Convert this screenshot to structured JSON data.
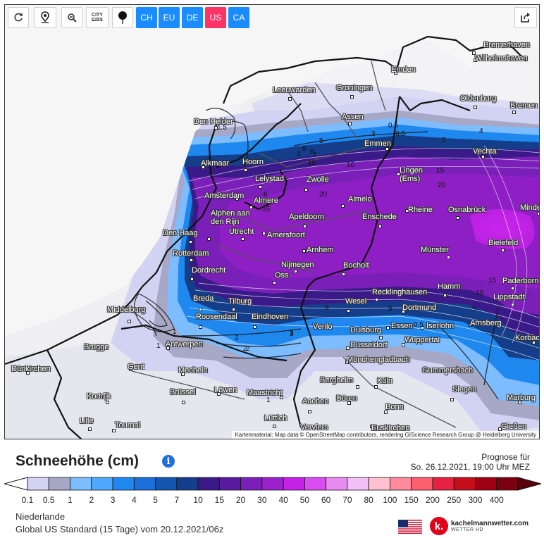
{
  "toolbar": {
    "buttons": [
      {
        "name": "refresh-button",
        "icon": "refresh-icon"
      },
      {
        "name": "location-button",
        "icon": "location-pin-icon"
      },
      {
        "name": "zoom-out-button",
        "icon": "zoom-out-icon"
      },
      {
        "name": "city-labels-button",
        "icon": "city-strike-icon",
        "label": "CITY"
      },
      {
        "name": "station-marker-button",
        "icon": "balloon-pin-icon"
      }
    ],
    "regions": [
      {
        "label": "CH",
        "color": "#1a8cff",
        "active": false
      },
      {
        "label": "EU",
        "color": "#1a8cff",
        "active": false
      },
      {
        "label": "DE",
        "color": "#1a8cff",
        "active": false
      },
      {
        "label": "US",
        "color": "#ff3366",
        "active": true
      },
      {
        "label": "CA",
        "color": "#1a8cff",
        "active": false
      }
    ],
    "share_icon": "share-icon"
  },
  "map": {
    "attribution": "Kartenmaterial: Map data © OpenStreetMap contributors, rendering GIScience Research Group @ Heidelberg University",
    "cities": [
      {
        "name": "Bremerhaven"
      },
      {
        "name": "Wilhelmshaven"
      },
      {
        "name": "Emden"
      },
      {
        "name": "Leeuwarden"
      },
      {
        "name": "Groningen"
      },
      {
        "name": "Oldenburg"
      },
      {
        "name": "Bremen"
      },
      {
        "name": "Assen"
      },
      {
        "name": "Den Helder"
      },
      {
        "name": "Emmen"
      },
      {
        "name": "Vechta"
      },
      {
        "name": "Alkmaar"
      },
      {
        "name": "Hoorn"
      },
      {
        "name": "Lingen (Ems)"
      },
      {
        "name": "Lelystad"
      },
      {
        "name": "Zwolle"
      },
      {
        "name": "Amsterdam"
      },
      {
        "name": "Almere"
      },
      {
        "name": "Almelo"
      },
      {
        "name": "Rheine"
      },
      {
        "name": "Osnabrück"
      },
      {
        "name": "Minden"
      },
      {
        "name": "Alphen aan den Rijn"
      },
      {
        "name": "Apeldoorn"
      },
      {
        "name": "Enschede"
      },
      {
        "name": "Den Haag"
      },
      {
        "name": "Utrecht"
      },
      {
        "name": "Amersfoort"
      },
      {
        "name": "Bielefeld"
      },
      {
        "name": "Rotterdam"
      },
      {
        "name": "Arnhem"
      },
      {
        "name": "Münster"
      },
      {
        "name": "Dordrecht"
      },
      {
        "name": "Nijmegen"
      },
      {
        "name": "Bocholt"
      },
      {
        "name": "Oss"
      },
      {
        "name": "Paderborn"
      },
      {
        "name": "Hamm"
      },
      {
        "name": "Breda"
      },
      {
        "name": "Tilburg"
      },
      {
        "name": "Recklinghausen"
      },
      {
        "name": "Lippstadt"
      },
      {
        "name": "Middelburg"
      },
      {
        "name": "Wesel"
      },
      {
        "name": "Dortmund"
      },
      {
        "name": "Roosendaal"
      },
      {
        "name": "Eindhoven"
      },
      {
        "name": "Venlo"
      },
      {
        "name": "Essen"
      },
      {
        "name": "Iserlohn"
      },
      {
        "name": "Arnsberg"
      },
      {
        "name": "Duisburg"
      },
      {
        "name": "Brugge"
      },
      {
        "name": "Antwerpen"
      },
      {
        "name": "Düsseldorf"
      },
      {
        "name": "Wuppertal"
      },
      {
        "name": "Korbach"
      },
      {
        "name": "Gent"
      },
      {
        "name": "Mönchengladbach"
      },
      {
        "name": "Dünkirchen"
      },
      {
        "name": "Mecheln"
      },
      {
        "name": "Gummersbach"
      },
      {
        "name": "Bergheim"
      },
      {
        "name": "Köln"
      },
      {
        "name": "Kortrijk"
      },
      {
        "name": "Brüssel"
      },
      {
        "name": "Löwen"
      },
      {
        "name": "Maastricht"
      },
      {
        "name": "Siegen"
      },
      {
        "name": "Düren"
      },
      {
        "name": "Aachen"
      },
      {
        "name": "Bonn"
      },
      {
        "name": "Marburg"
      },
      {
        "name": "Lille"
      },
      {
        "name": "Tournai"
      },
      {
        "name": "Lüttich"
      },
      {
        "name": "Verviers"
      },
      {
        "name": "Euskirchen"
      },
      {
        "name": "Gießen"
      }
    ],
    "isolines": [
      "0.5",
      "1.5",
      "0.5",
      "3",
      "4",
      "5",
      "6",
      "8",
      "10",
      "20",
      "5",
      "3",
      "15",
      "10",
      "20",
      "15",
      "7",
      "6",
      "2",
      "5",
      "5",
      "1",
      "1",
      "2",
      "3",
      "8",
      "10",
      "15",
      "0.5",
      "1",
      "2",
      "3"
    ]
  },
  "legend": {
    "title": "Schneehöhe (cm)",
    "info_icon": "info-icon",
    "forecast_line1": "Prognose für",
    "forecast_line2": "So. 26.12.2021, 19:00 Uhr MEZ",
    "ticks": [
      "0.1",
      "0.5",
      "1",
      "2",
      "3",
      "4",
      "5",
      "7",
      "10",
      "15",
      "20",
      "30",
      "40",
      "50",
      "60",
      "70",
      "80",
      "100",
      "150",
      "200",
      "250",
      "300",
      "400"
    ],
    "colors": [
      "#d2d2f2",
      "#a7a7c6",
      "#7cbcff",
      "#4ea8ff",
      "#1f88ee",
      "#1a6fd8",
      "#1455b0",
      "#153e8a",
      "#3a1a88",
      "#5a1aa0",
      "#7a1fb8",
      "#9a22cc",
      "#c522e8",
      "#d94cf0",
      "#e88cf2",
      "#f2c0f6",
      "#ffc0d0",
      "#ff8a9c",
      "#ff6070",
      "#e62040",
      "#c40f1a",
      "#a00014",
      "#7a0010"
    ],
    "region": "Niederlande",
    "model": "Global US Standard  (15 Tage)  vom 20.12.2021/06z"
  },
  "brand": {
    "name": "kachelmannwetter.com",
    "sub": "WETTER HD",
    "logo_letter": "k."
  }
}
